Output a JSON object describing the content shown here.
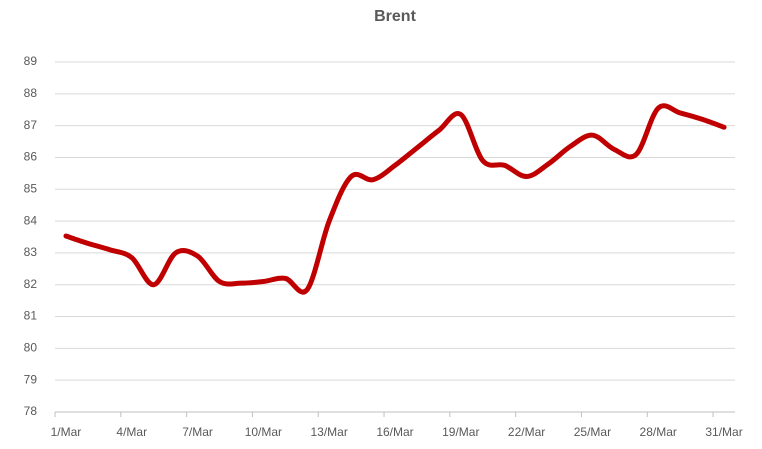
{
  "chart_data": {
    "type": "line",
    "title": "Brent",
    "categories": [
      "1/Mar",
      null,
      null,
      "4/Mar",
      null,
      null,
      "7/Mar",
      null,
      null,
      "10/Mar",
      null,
      null,
      "13/Mar",
      null,
      null,
      "16/Mar",
      null,
      null,
      "19/Mar",
      null,
      null,
      "22/Mar",
      null,
      null,
      "25/Mar",
      null,
      null,
      "28/Mar",
      null,
      null,
      "31/Mar"
    ],
    "series": [
      {
        "name": "Brent",
        "color": "#c00000",
        "values": [
          83.53,
          83.3,
          83.1,
          82.85,
          82.0,
          83.0,
          82.9,
          82.1,
          82.05,
          82.1,
          82.2,
          81.85,
          84.0,
          85.4,
          85.3,
          85.75,
          86.3,
          86.85,
          87.35,
          85.9,
          85.75,
          85.4,
          85.8,
          86.35,
          86.7,
          86.25,
          86.1,
          87.55,
          87.4,
          87.2,
          86.95
        ]
      }
    ],
    "ylim": [
      78,
      89
    ],
    "yticks": [
      78,
      79,
      80,
      81,
      82,
      83,
      84,
      85,
      86,
      87,
      88,
      89
    ],
    "grid": true,
    "smooth": true
  }
}
